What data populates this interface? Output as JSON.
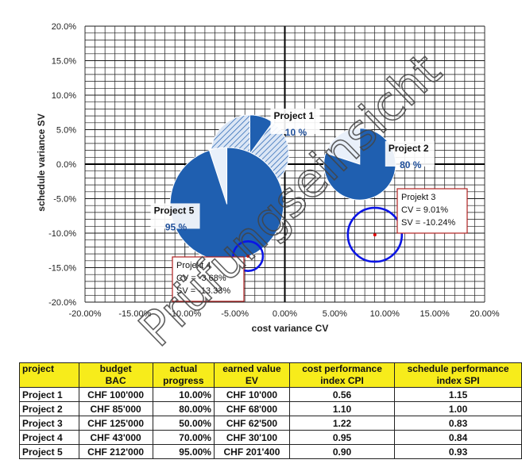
{
  "chart_data": {
    "type": "bubble",
    "xlabel": "cost variance CV",
    "ylabel": "schedule variance SV",
    "xlim": [
      -20,
      20
    ],
    "ylim": [
      -20,
      20
    ],
    "x_ticks": [
      "-20.00%",
      "-15.00%",
      "-10.00%",
      "-5.00%",
      "0.00%",
      "5.00%",
      "10.00%",
      "15.00%",
      "20.00%"
    ],
    "y_ticks": [
      "20.0%",
      "15.0%",
      "10.0%",
      "5.0%",
      "0.0%",
      "-5.0%",
      "-10.0%",
      "-15.0%",
      "-20.0%"
    ],
    "grid": true,
    "bubbles": [
      {
        "name": "Project 1",
        "progress_label": "10 %",
        "progress": 0.1,
        "cv": -3.5,
        "sv": 1.5,
        "bac": 100000,
        "style": "pie"
      },
      {
        "name": "Project 2",
        "progress_label": "80 %",
        "progress": 0.8,
        "cv": 7.5,
        "sv": 0.0,
        "bac": 85000,
        "style": "pie"
      },
      {
        "name": "Project 5",
        "progress_label": "95 %",
        "progress": 0.95,
        "cv": -5.8,
        "sv": -5.8,
        "bac": 212000,
        "style": "pie"
      }
    ],
    "circles": [
      {
        "name": "Projekt 3",
        "cv": 9.01,
        "sv": -10.24,
        "size": 1.0
      },
      {
        "name": "Projekt 4",
        "cv": -3.68,
        "sv": -13.33,
        "size": 0.55
      }
    ],
    "callouts": [
      {
        "title": "Projekt 3",
        "cv_text": "CV = 9.01%",
        "sv_text": "SV = -10.24%"
      },
      {
        "title": "Projekt 4",
        "cv_text": "CV = -3.68%",
        "sv_text": "SV = -13.33%"
      }
    ],
    "colors": {
      "pie_dark": "#1f5fb0",
      "pie_light": "#c7d9f0",
      "circle": "#0a14e6",
      "point": "#e00000",
      "callout_border": "#b02020",
      "grid": "#1a1a1a"
    }
  },
  "watermark": "Prüfungseinsicht",
  "table": {
    "headers": [
      "project",
      "budget\nBAC",
      "actual\nprogress",
      "earned value\nEV",
      "cost performance\nindex CPI",
      "schedule performance\nindex SPI"
    ],
    "rows": [
      [
        "Project 1",
        "CHF 100'000",
        "10.00%",
        "CHF 10'000",
        "0.56",
        "1.15"
      ],
      [
        "Project 2",
        "CHF 85'000",
        "80.00%",
        "CHF 68'000",
        "1.10",
        "1.00"
      ],
      [
        "Project 3",
        "CHF 125'000",
        "50.00%",
        "CHF 62'500",
        "1.22",
        "0.83"
      ],
      [
        "Project 4",
        "CHF 43'000",
        "70.00%",
        "CHF 30'100",
        "0.95",
        "0.84"
      ],
      [
        "Project 5",
        "CHF 212'000",
        "95.00%",
        "CHF 201'400",
        "0.90",
        "0.93"
      ]
    ]
  }
}
